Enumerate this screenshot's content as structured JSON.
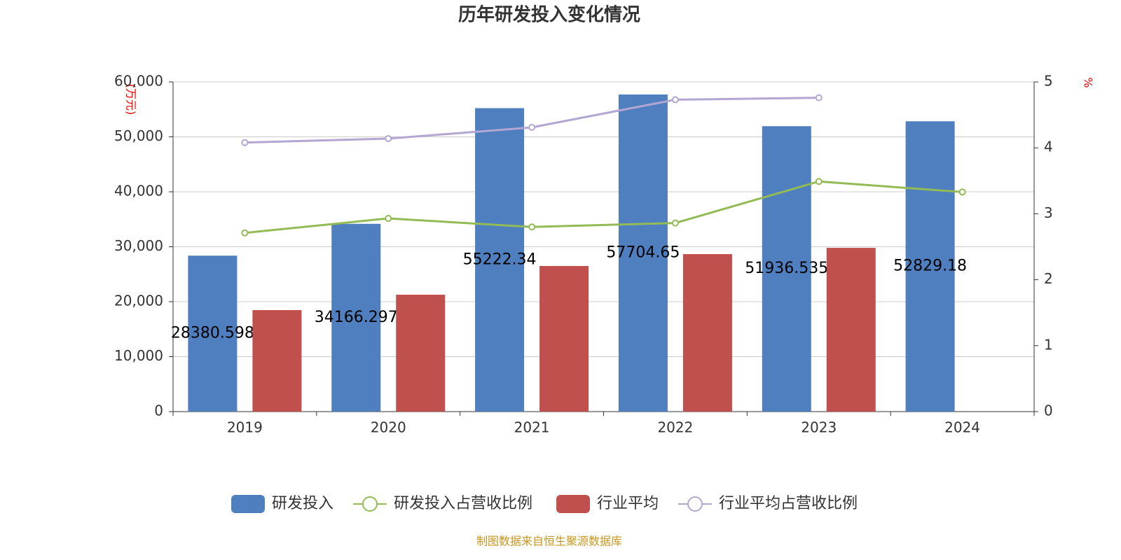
{
  "chart_data": {
    "type": "bar",
    "title": "历年研发投入变化情况",
    "y_label": "(万元)",
    "y2_label": "%",
    "categories": [
      "2019",
      "2020",
      "2021",
      "2022",
      "2023",
      "2024"
    ],
    "series": [
      {
        "name": "研发投入",
        "type": "bar",
        "color": "#4f7fbf",
        "values": [
          28380.598,
          34166.297,
          55222.34,
          57704.65,
          51936.535,
          52829.18
        ]
      },
      {
        "name": "研发投入占营收比例",
        "type": "line",
        "axis": "y2",
        "color": "#93bb55",
        "values": [
          2.71,
          2.93,
          2.8,
          2.86,
          3.49,
          3.33
        ]
      },
      {
        "name": "行业平均",
        "type": "bar",
        "color": "#c0504d",
        "values": [
          18470,
          21270,
          26500,
          28660,
          29800,
          null
        ]
      },
      {
        "name": "行业平均占营收比例",
        "type": "line",
        "axis": "y2",
        "color": "#b3a6d2",
        "values": [
          4.08,
          4.14,
          4.31,
          4.73,
          4.76,
          null
        ]
      }
    ],
    "ylim": [
      0,
      60000
    ],
    "yticks": [
      0,
      {
        "value": 10000,
        "label": "10,000"
      },
      {
        "value": 20000,
        "label": "20,000"
      },
      {
        "value": 30000,
        "label": "30,000"
      },
      {
        "value": 40000,
        "label": "40,000"
      },
      {
        "value": 50000,
        "label": "50,000"
      },
      {
        "value": 60000,
        "label": "60,000"
      }
    ],
    "y2lim": [
      0,
      5
    ],
    "y2ticks": [
      0,
      1,
      2,
      3,
      4,
      5
    ],
    "grid": true,
    "legend": "bottom",
    "source": "制图数据来自恒生聚源数据库"
  }
}
